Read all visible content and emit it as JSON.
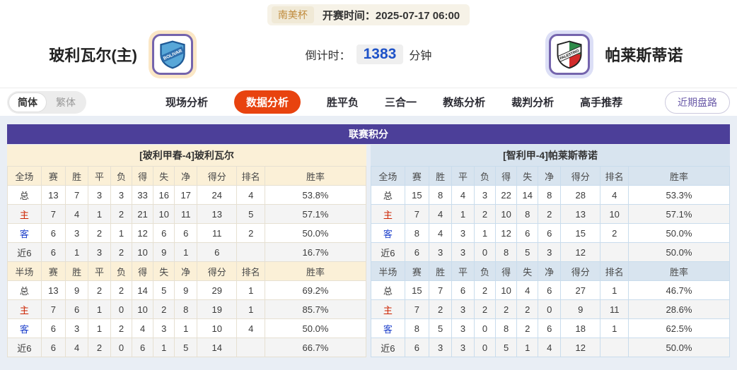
{
  "meta": {
    "league": "南美杯",
    "kickoff_label": "开赛时间：",
    "kickoff_time": "2025-07-17 06:00",
    "countdown_label": "倒计时：",
    "countdown_value": "1383",
    "countdown_unit": "分钟"
  },
  "teams": {
    "home": {
      "name": "玻利瓦尔(主)",
      "logo_text": "BOLIVAR"
    },
    "away": {
      "name": "帕莱斯蒂诺",
      "logo_text": "PALESTINO"
    }
  },
  "nav": {
    "lang_options": [
      {
        "label": "简体",
        "active": true
      },
      {
        "label": "繁体",
        "active": false
      }
    ],
    "tabs": [
      {
        "label": "现场分析",
        "active": false
      },
      {
        "label": "数据分析",
        "active": true
      },
      {
        "label": "胜平负",
        "active": false
      },
      {
        "label": "三合一",
        "active": false
      },
      {
        "label": "教练分析",
        "active": false
      },
      {
        "label": "裁判分析",
        "active": false
      },
      {
        "label": "高手推荐",
        "active": false
      }
    ],
    "recent_button": "近期盘路"
  },
  "table": {
    "title": "联赛积分",
    "columns_full": [
      "全场",
      "赛",
      "胜",
      "平",
      "负",
      "得",
      "失",
      "净",
      "得分",
      "排名",
      "胜率"
    ],
    "columns_half": [
      "半场",
      "赛",
      "胜",
      "平",
      "负",
      "得",
      "失",
      "净",
      "得分",
      "排名",
      "胜率"
    ],
    "home": {
      "header": "[玻利甲春-4]玻利瓦尔",
      "full": [
        {
          "label": "总",
          "values": [
            "13",
            "7",
            "3",
            "3",
            "33",
            "16",
            "17",
            "24",
            "4",
            "53.8%"
          ]
        },
        {
          "label": "主",
          "values": [
            "7",
            "4",
            "1",
            "2",
            "21",
            "10",
            "11",
            "13",
            "5",
            "57.1%"
          ]
        },
        {
          "label": "客",
          "values": [
            "6",
            "3",
            "2",
            "1",
            "12",
            "6",
            "6",
            "11",
            "2",
            "50.0%"
          ]
        },
        {
          "label": "近6",
          "values": [
            "6",
            "1",
            "3",
            "2",
            "10",
            "9",
            "1",
            "6",
            "",
            "16.7%"
          ]
        }
      ],
      "half": [
        {
          "label": "总",
          "values": [
            "13",
            "9",
            "2",
            "2",
            "14",
            "5",
            "9",
            "29",
            "1",
            "69.2%"
          ]
        },
        {
          "label": "主",
          "values": [
            "7",
            "6",
            "1",
            "0",
            "10",
            "2",
            "8",
            "19",
            "1",
            "85.7%"
          ]
        },
        {
          "label": "客",
          "values": [
            "6",
            "3",
            "1",
            "2",
            "4",
            "3",
            "1",
            "10",
            "4",
            "50.0%"
          ]
        },
        {
          "label": "近6",
          "values": [
            "6",
            "4",
            "2",
            "0",
            "6",
            "1",
            "5",
            "14",
            "",
            "66.7%"
          ]
        }
      ]
    },
    "away": {
      "header": "[智利甲-4]帕莱斯蒂诺",
      "full": [
        {
          "label": "总",
          "values": [
            "15",
            "8",
            "4",
            "3",
            "22",
            "14",
            "8",
            "28",
            "4",
            "53.3%"
          ]
        },
        {
          "label": "主",
          "values": [
            "7",
            "4",
            "1",
            "2",
            "10",
            "8",
            "2",
            "13",
            "10",
            "57.1%"
          ]
        },
        {
          "label": "客",
          "values": [
            "8",
            "4",
            "3",
            "1",
            "12",
            "6",
            "6",
            "15",
            "2",
            "50.0%"
          ]
        },
        {
          "label": "近6",
          "values": [
            "6",
            "3",
            "3",
            "0",
            "8",
            "5",
            "3",
            "12",
            "",
            "50.0%"
          ]
        }
      ],
      "half": [
        {
          "label": "总",
          "values": [
            "15",
            "7",
            "6",
            "2",
            "10",
            "4",
            "6",
            "27",
            "1",
            "46.7%"
          ]
        },
        {
          "label": "主",
          "values": [
            "7",
            "2",
            "3",
            "2",
            "2",
            "2",
            "0",
            "9",
            "11",
            "28.6%"
          ]
        },
        {
          "label": "客",
          "values": [
            "8",
            "5",
            "3",
            "0",
            "8",
            "2",
            "6",
            "18",
            "1",
            "62.5%"
          ]
        },
        {
          "label": "近6",
          "values": [
            "6",
            "3",
            "3",
            "0",
            "5",
            "1",
            "4",
            "12",
            "",
            "50.0%"
          ]
        }
      ]
    }
  },
  "colors": {
    "title_bar": "#4c3f99",
    "active_tab": "#e8430f",
    "countdown_number": "#1e52c8",
    "league_text": "#c08c3e",
    "home_header_bg": "#fbf0d7",
    "away_header_bg": "#d8e4ef",
    "home_row_label": "#cc2200",
    "away_row_label": "#2244cc"
  }
}
